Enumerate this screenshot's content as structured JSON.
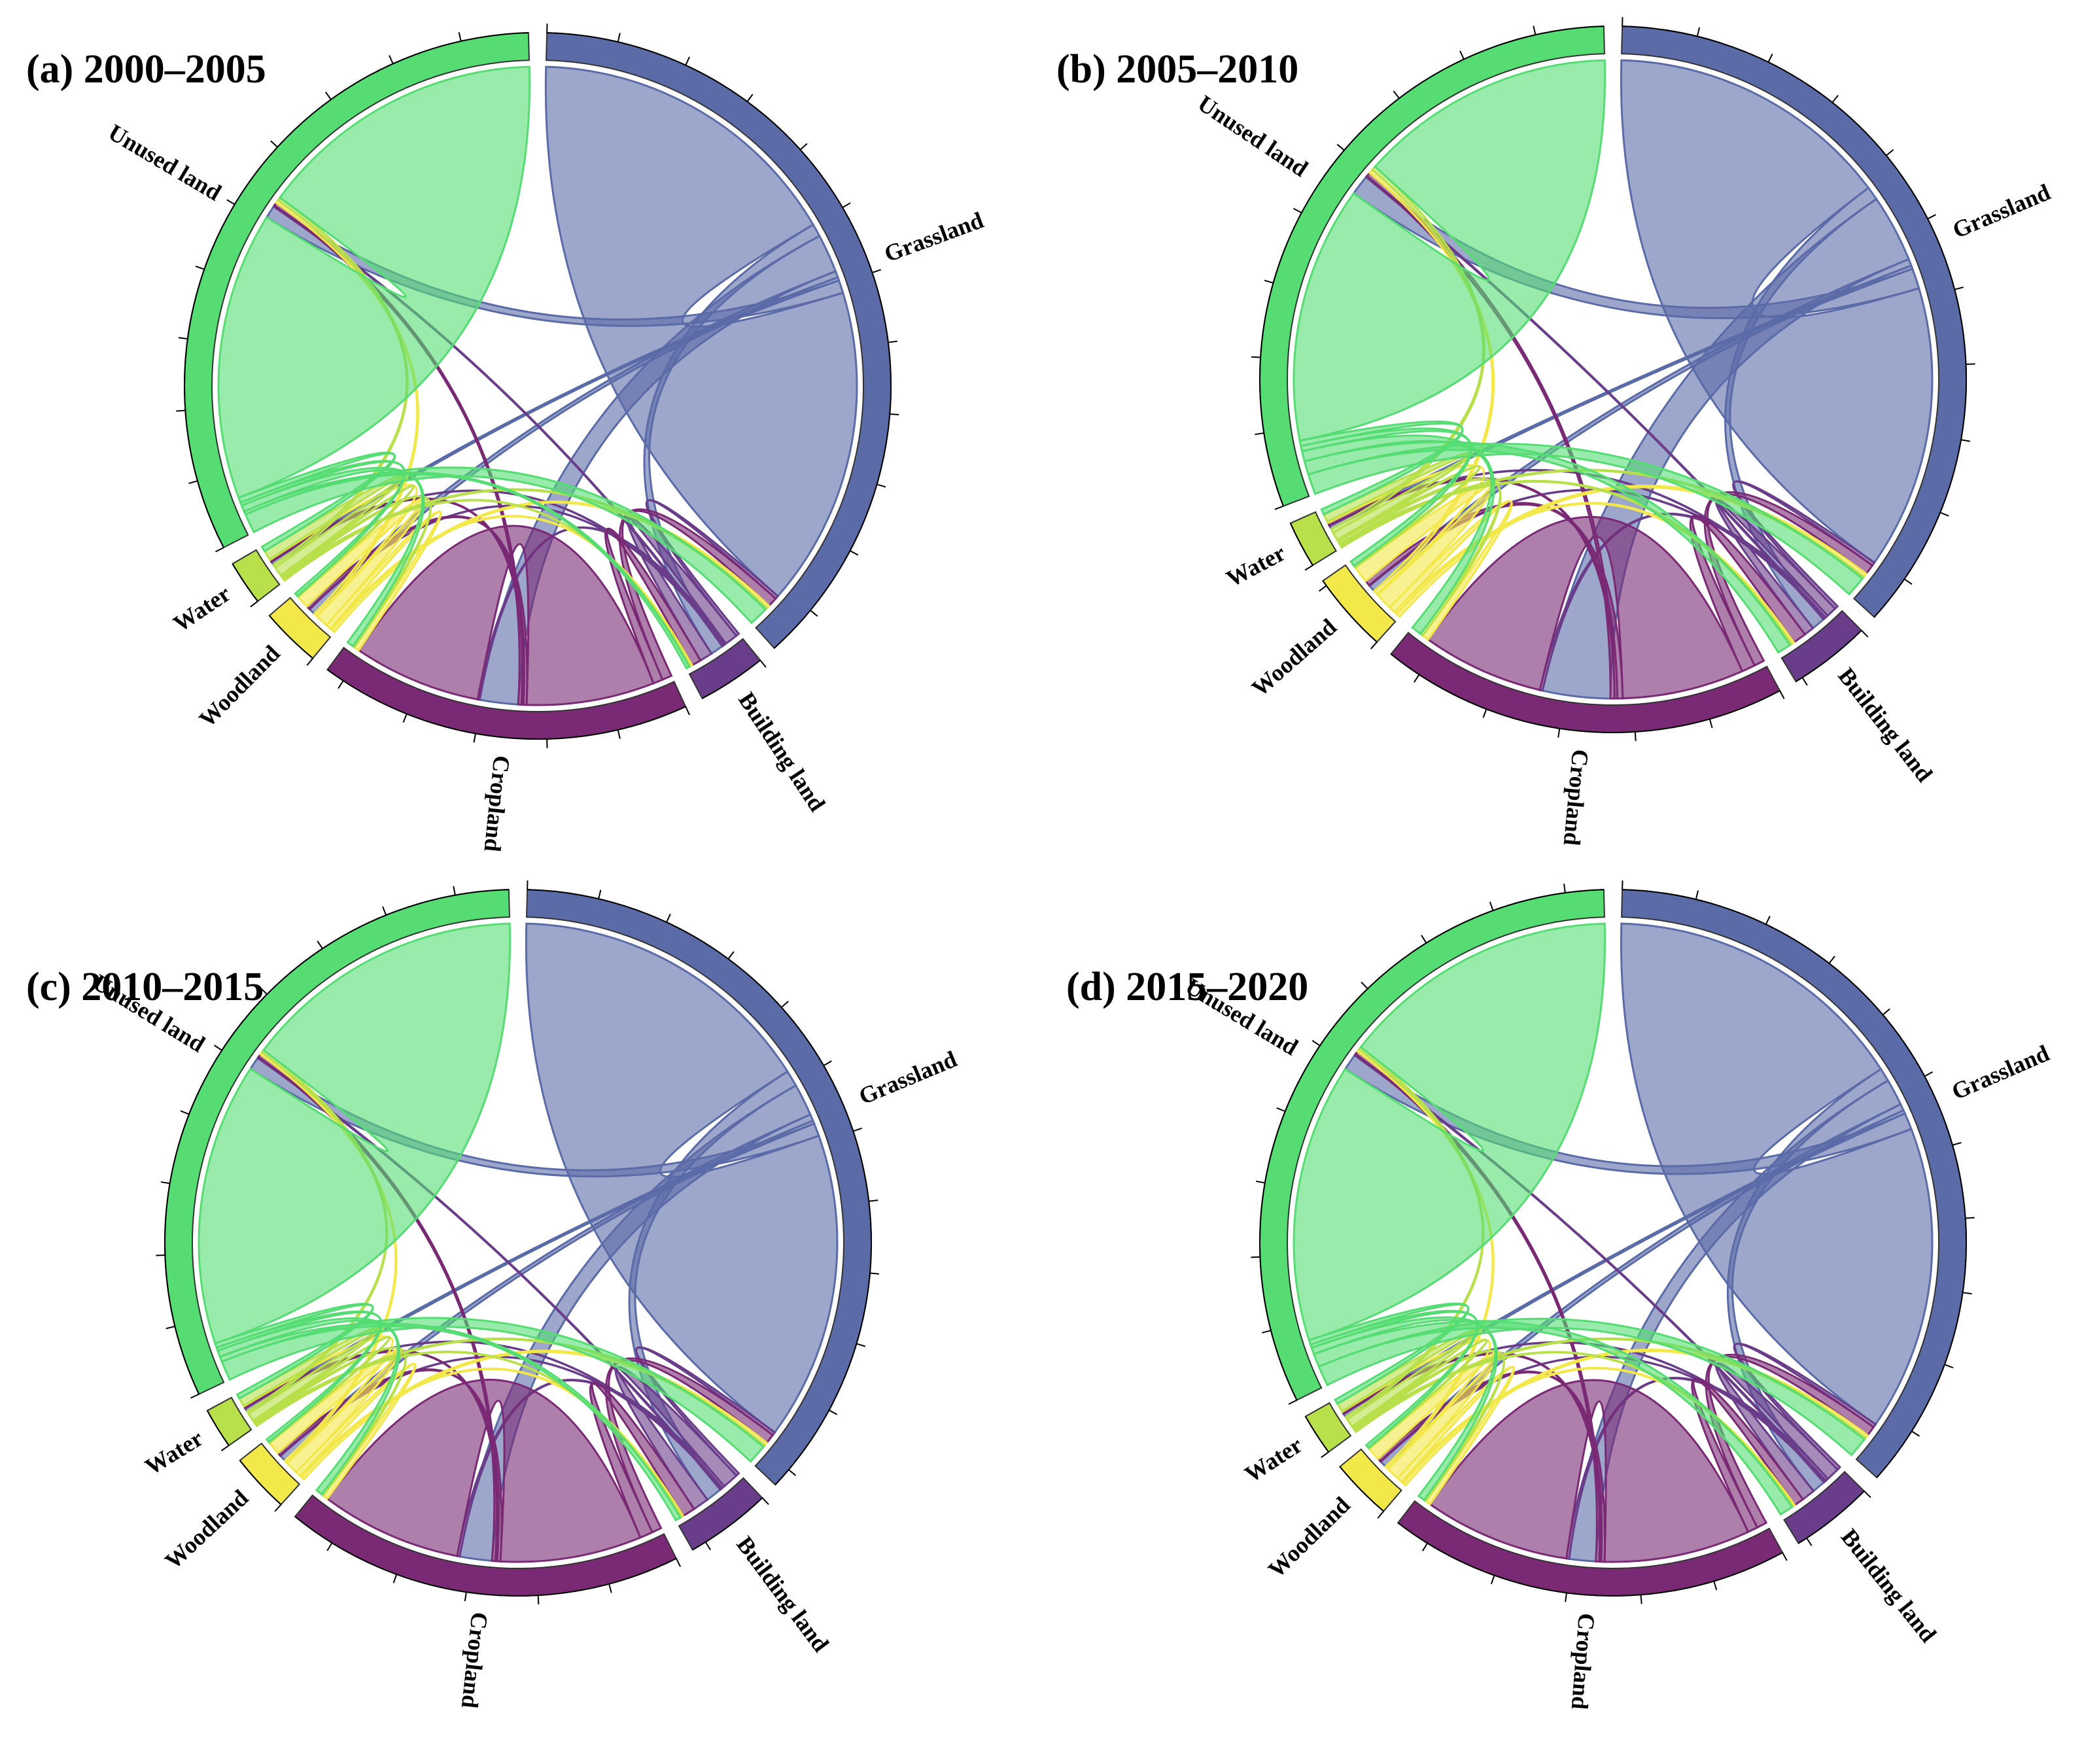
{
  "chart_data": [
    {
      "type": "chord",
      "title": "(a) 2000–2005",
      "categories": [
        "Grassland",
        "Building land",
        "Cropland",
        "Woodland",
        "Water",
        "Unused land"
      ],
      "colors": [
        "#5b6ba8",
        "#6a3d8a",
        "#7a2a74",
        "#f3e84a",
        "#b7e04a",
        "#55dd73"
      ],
      "matrix": [
        [
          50,
          2,
          6,
          1,
          0.5,
          2
        ],
        [
          0.5,
          2,
          0.3,
          0.1,
          0.1,
          0.2
        ],
        [
          1.5,
          1.5,
          20,
          0.5,
          0.3,
          0.5
        ],
        [
          0.5,
          0.3,
          0.8,
          2,
          0.1,
          0.5
        ],
        [
          0.3,
          0.2,
          0.3,
          0.2,
          1.5,
          0.5
        ],
        [
          3,
          0.5,
          1,
          0.5,
          0.8,
          45
        ]
      ],
      "tick_interval": 10
    },
    {
      "type": "chord",
      "title": "(b) 2005–2010",
      "categories": [
        "Grassland",
        "Building land",
        "Cropland",
        "Woodland",
        "Water",
        "Unused land"
      ],
      "colors": [
        "#5b6ba8",
        "#6a3d8a",
        "#7a2a74",
        "#f3e84a",
        "#b7e04a",
        "#55dd73"
      ],
      "matrix": [
        [
          42,
          2,
          10,
          1,
          0.5,
          3
        ],
        [
          0.5,
          1.5,
          0.4,
          0.1,
          0.1,
          0.2
        ],
        [
          1.5,
          2,
          18,
          0.8,
          0.4,
          0.6
        ],
        [
          0.6,
          0.4,
          1,
          2.5,
          0.2,
          0.6
        ],
        [
          0.3,
          0.3,
          0.4,
          0.3,
          1.2,
          0.6
        ],
        [
          3,
          2,
          1.5,
          0.8,
          0.8,
          38
        ]
      ],
      "tick_interval": 10
    },
    {
      "type": "chord",
      "title": "(c) 2010–2015",
      "categories": [
        "Grassland",
        "Building land",
        "Cropland",
        "Woodland",
        "Water",
        "Unused land"
      ],
      "colors": [
        "#5b6ba8",
        "#6a3d8a",
        "#7a2a74",
        "#f3e84a",
        "#b7e04a",
        "#55dd73"
      ],
      "matrix": [
        [
          48,
          2.5,
          5,
          1,
          0.5,
          2
        ],
        [
          0.5,
          2.5,
          0.4,
          0.1,
          0.1,
          0.2
        ],
        [
          1.5,
          2,
          22,
          0.5,
          0.3,
          0.5
        ],
        [
          0.5,
          0.3,
          0.8,
          2,
          0.1,
          0.4
        ],
        [
          0.3,
          0.2,
          0.3,
          0.2,
          1.3,
          0.4
        ],
        [
          3,
          0.8,
          1,
          0.5,
          0.7,
          44
        ]
      ],
      "tick_interval": 10
    },
    {
      "type": "chord",
      "title": "(d) 2015–2020",
      "categories": [
        "Grassland",
        "Building land",
        "Cropland",
        "Woodland",
        "Water",
        "Unused land"
      ],
      "colors": [
        "#5b6ba8",
        "#6a3d8a",
        "#7a2a74",
        "#f3e84a",
        "#b7e04a",
        "#55dd73"
      ],
      "matrix": [
        [
          46,
          2,
          4,
          1,
          0.5,
          2.5
        ],
        [
          0.5,
          2,
          0.4,
          0.1,
          0.1,
          0.2
        ],
        [
          1.5,
          1.5,
          22,
          0.5,
          0.3,
          0.5
        ],
        [
          0.5,
          0.3,
          0.8,
          2,
          0.1,
          0.4
        ],
        [
          0.3,
          0.2,
          0.3,
          0.2,
          1.3,
          0.4
        ],
        [
          3,
          2,
          1,
          0.5,
          0.7,
          42
        ]
      ],
      "tick_interval": 10
    }
  ]
}
